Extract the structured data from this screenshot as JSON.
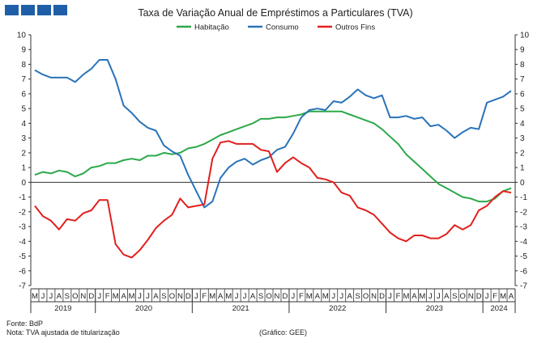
{
  "header": {
    "brand_colors": [
      "#1f5fa8",
      "#1f5fa8",
      "#1f5fa8",
      "#1f5fa8"
    ]
  },
  "footer": {
    "source": "Fonte: BdP",
    "note": "Nota: TVA ajustada de titularização",
    "credit": "(Gráfico: GEE)"
  },
  "chart_data": {
    "type": "line",
    "title": "Taxa de Variação Anual de Empréstimos a Particulares (TVA)",
    "ylim": [
      -7,
      10
    ],
    "y_ticks": [
      "-7",
      "-6",
      "-5",
      "-4",
      "-3",
      "-2",
      "-1",
      "0",
      "1",
      "2",
      "3",
      "4",
      "5",
      "6",
      "7",
      "8",
      "9",
      "10"
    ],
    "grid": false,
    "legend_position": "top",
    "month_labels": [
      "M",
      "J",
      "J",
      "A",
      "S",
      "O",
      "N",
      "D",
      "J",
      "F",
      "M",
      "A",
      "M",
      "J",
      "J",
      "A",
      "S",
      "O",
      "N",
      "D",
      "J",
      "F",
      "M",
      "A",
      "M",
      "J",
      "J",
      "A",
      "S",
      "O",
      "N",
      "D",
      "J",
      "F",
      "M",
      "A",
      "M",
      "J",
      "J",
      "A",
      "S",
      "O",
      "N",
      "D",
      "J",
      "F",
      "M",
      "A",
      "M",
      "J",
      "J",
      "A",
      "S",
      "O",
      "N",
      "D",
      "J",
      "F",
      "M",
      "A"
    ],
    "year_labels": [
      "2019",
      "2020",
      "2021",
      "2022",
      "2023",
      "2024"
    ],
    "series": [
      {
        "name": "Habitação",
        "color": "#2ca84a",
        "values": [
          0.5,
          0.7,
          0.6,
          0.8,
          0.7,
          0.4,
          0.6,
          1.0,
          1.1,
          1.3,
          1.3,
          1.5,
          1.6,
          1.5,
          1.8,
          1.8,
          2.0,
          1.9,
          2.0,
          2.3,
          2.4,
          2.6,
          2.9,
          3.2,
          3.4,
          3.6,
          3.8,
          4.0,
          4.3,
          4.3,
          4.4,
          4.4,
          4.5,
          4.6,
          4.8,
          4.8,
          4.8,
          4.8,
          4.8,
          4.6,
          4.4,
          4.2,
          4.0,
          3.6,
          3.1,
          2.6,
          1.9,
          1.4,
          0.9,
          0.4,
          -0.1,
          -0.4,
          -0.7,
          -1.0,
          -1.1,
          -1.3,
          -1.3,
          -1.1,
          -0.6,
          -0.4
        ]
      },
      {
        "name": "Consumo",
        "color": "#2a73b8",
        "values": [
          7.6,
          7.3,
          7.1,
          7.1,
          7.1,
          6.8,
          7.3,
          7.7,
          8.3,
          8.3,
          7.0,
          5.2,
          4.7,
          4.1,
          3.7,
          3.5,
          2.5,
          2.1,
          1.8,
          0.5,
          -0.6,
          -1.7,
          -1.3,
          0.3,
          1.0,
          1.4,
          1.6,
          1.2,
          1.5,
          1.7,
          2.2,
          2.4,
          3.3,
          4.4,
          4.9,
          5.0,
          4.9,
          5.5,
          5.4,
          5.8,
          6.3,
          5.9,
          5.7,
          5.9,
          4.4,
          4.4,
          4.5,
          4.3,
          4.4,
          3.8,
          3.9,
          3.5,
          3.0,
          3.4,
          3.7,
          3.6,
          5.4,
          5.6,
          5.8,
          6.2
        ]
      },
      {
        "name": "Outros Fins",
        "color": "#e0201e",
        "values": [
          -1.6,
          -2.3,
          -2.6,
          -3.2,
          -2.5,
          -2.6,
          -2.1,
          -1.9,
          -1.2,
          -1.2,
          -4.2,
          -4.9,
          -5.1,
          -4.6,
          -3.9,
          -3.1,
          -2.6,
          -2.2,
          -1.1,
          -1.7,
          -1.6,
          -1.5,
          1.6,
          2.7,
          2.8,
          2.6,
          2.6,
          2.6,
          2.2,
          2.1,
          0.7,
          1.3,
          1.7,
          1.3,
          1.0,
          0.3,
          0.2,
          0.0,
          -0.7,
          -0.9,
          -1.7,
          -1.9,
          -2.2,
          -2.8,
          -3.4,
          -3.8,
          -4.0,
          -3.6,
          -3.6,
          -3.8,
          -3.8,
          -3.5,
          -2.9,
          -3.2,
          -2.9,
          -1.9,
          -1.6,
          -1.0,
          -0.6,
          -0.7
        ]
      }
    ]
  }
}
